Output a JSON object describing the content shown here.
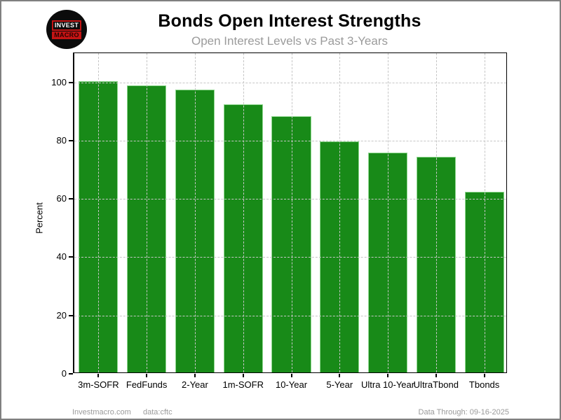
{
  "window": {
    "background": "#ffffff",
    "border_color": "#808080"
  },
  "logo": {
    "line1": "INVEST",
    "line2": "MACRO",
    "circle_color": "#0b0b0b",
    "accent_red": "#c41414"
  },
  "header": {
    "title": "Bonds Open Interest Strengths",
    "subtitle": "Open Interest Levels vs Past 3-Years"
  },
  "chart_data": {
    "type": "bar",
    "title": "Bonds Open Interest Strengths",
    "subtitle": "Open Interest Levels vs Past 3-Years",
    "categories": [
      "3m-SOFR",
      "FedFunds",
      "2-Year",
      "1m-SOFR",
      "10-Year",
      "5-Year",
      "Ultra 10-Year",
      "UltraTbond",
      "Tbonds"
    ],
    "values": [
      100,
      98.5,
      97,
      92,
      88,
      79.3,
      75.5,
      74,
      62
    ],
    "xlabel": "",
    "ylabel": "Percent",
    "ylim": [
      0,
      110
    ],
    "yticks": [
      0,
      20,
      40,
      60,
      80,
      100
    ],
    "grid": "dashed-both-axes-drawn-over-bars",
    "legend_position": "none",
    "bar_color": "#188a18",
    "bar_edge_color": "#8fd88f",
    "grid_color": "#c6c6c6"
  },
  "footer": {
    "site": "Investmacro.com",
    "source": "data:cftc",
    "data_through": "Data Through: 09-16-2025"
  }
}
